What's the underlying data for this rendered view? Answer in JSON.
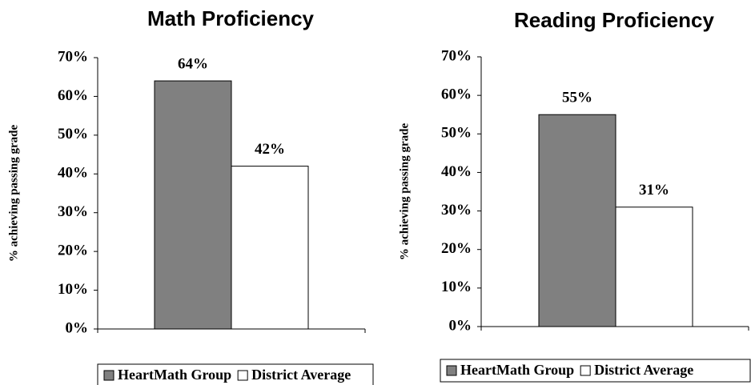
{
  "chart_data": [
    {
      "type": "bar",
      "title": "Math Proficiency",
      "ylabel": "% achieving passing grade",
      "categories": [
        null
      ],
      "series": [
        {
          "name": "HeartMath Group",
          "color": "#808080",
          "values": [
            64
          ],
          "value_labels": [
            "64%"
          ]
        },
        {
          "name": "District Average",
          "color": "#ffffff",
          "values": [
            42
          ],
          "value_labels": [
            "42%"
          ]
        }
      ],
      "ylim": [
        0,
        70
      ],
      "yticks": [
        {
          "value": 0,
          "label": "0%"
        },
        {
          "value": 10,
          "label": "10%"
        },
        {
          "value": 20,
          "label": "20%"
        },
        {
          "value": 30,
          "label": "30%"
        },
        {
          "value": 40,
          "label": "40%"
        },
        {
          "value": 50,
          "label": "50%"
        },
        {
          "value": 60,
          "label": "60%"
        },
        {
          "value": 70,
          "label": "70%"
        }
      ],
      "legend": "bottom"
    },
    {
      "type": "bar",
      "title": "Reading Proficiency",
      "ylabel": "% achieving passing grade",
      "categories": [
        null
      ],
      "series": [
        {
          "name": "HeartMath Group",
          "color": "#808080",
          "values": [
            55
          ],
          "value_labels": [
            "55%"
          ]
        },
        {
          "name": "District Average",
          "color": "#ffffff",
          "values": [
            31
          ],
          "value_labels": [
            "31%"
          ]
        }
      ],
      "ylim": [
        0,
        70
      ],
      "yticks": [
        {
          "value": 0,
          "label": "0%"
        },
        {
          "value": 10,
          "label": "10%"
        },
        {
          "value": 20,
          "label": "20%"
        },
        {
          "value": 30,
          "label": "30%"
        },
        {
          "value": 40,
          "label": "40%"
        },
        {
          "value": 50,
          "label": "50%"
        },
        {
          "value": 60,
          "label": "60%"
        },
        {
          "value": 70,
          "label": "70%"
        }
      ],
      "legend": "bottom"
    }
  ]
}
